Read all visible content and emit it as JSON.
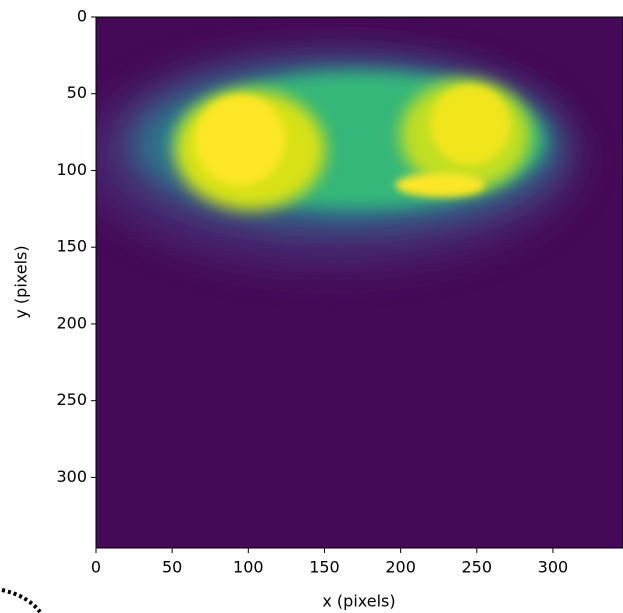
{
  "chart_data": {
    "type": "image",
    "xlabel": "x (pixels)",
    "ylabel": "y (pixels)",
    "xlim": [
      0,
      346
    ],
    "ylim": [
      346,
      0
    ],
    "xticks": [
      0,
      50,
      100,
      150,
      200,
      250,
      300
    ],
    "yticks": [
      0,
      50,
      100,
      150,
      200,
      250,
      300
    ]
  }
}
